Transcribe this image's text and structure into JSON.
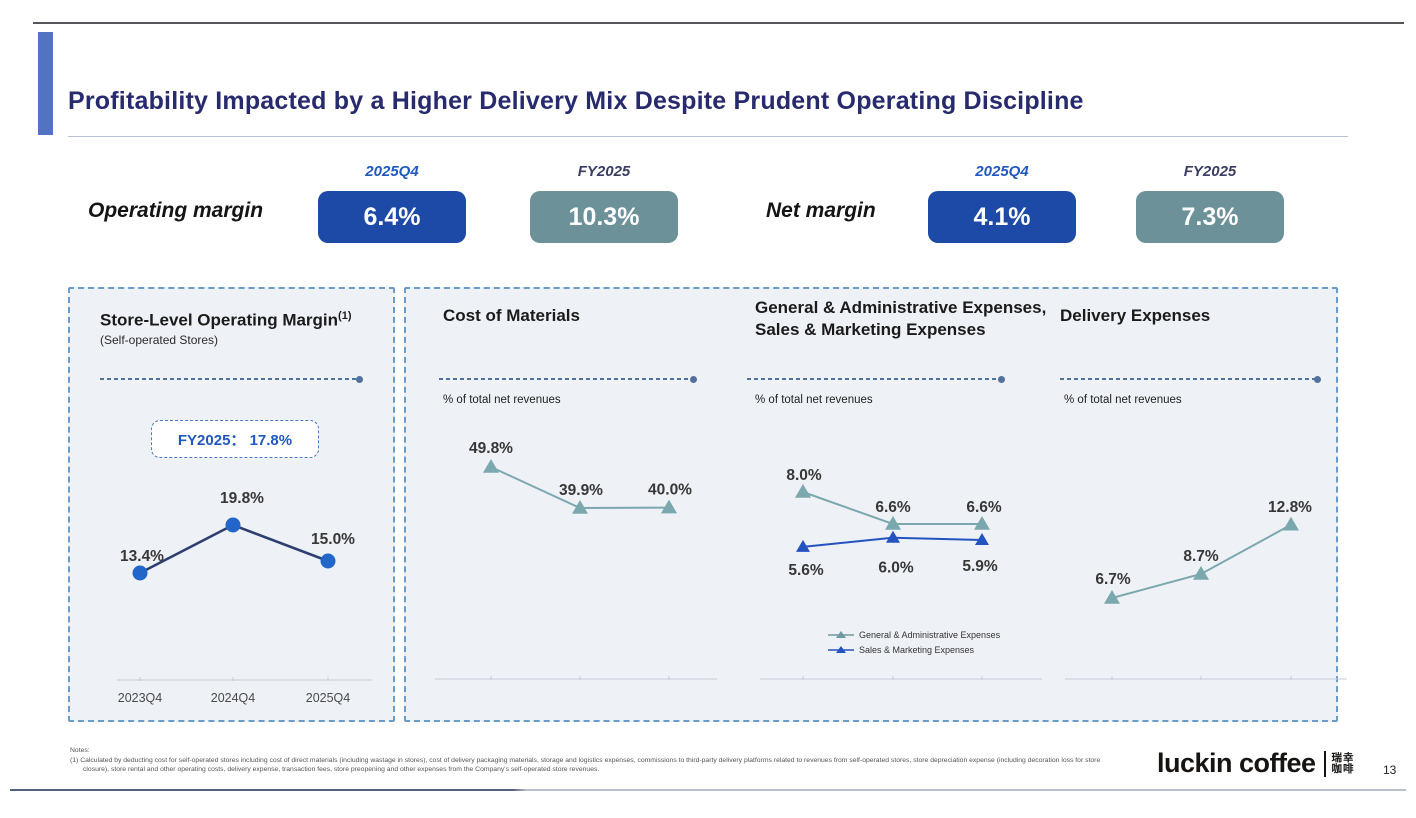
{
  "slide": {
    "title": "Profitability Impacted by a Higher Delivery Mix Despite Prudent Operating Discipline"
  },
  "summary": {
    "metrics": [
      {
        "label": "Operating margin",
        "period_q": "2025Q4",
        "value_q": "6.4%",
        "period_fy": "FY2025",
        "value_fy": "10.3%"
      },
      {
        "label": "Net margin",
        "period_q": "2025Q4",
        "value_q": "4.1%",
        "period_fy": "FY2025",
        "value_fy": "7.3%"
      }
    ]
  },
  "panels": [
    {
      "title": "Store-Level Operating Margin",
      "title_sup": "(1)",
      "subtitle": "(Self-operated Stores)",
      "badge": "FY2025： 17.8%"
    },
    {
      "title": "Cost of Materials",
      "unit_label": "% of total net revenues"
    },
    {
      "title": "General & Administrative Expenses,",
      "title2": "Sales & Marketing Expenses",
      "unit_label": "% of total net revenues",
      "legend": [
        "General & Administrative Expenses",
        "Sales & Marketing Expenses"
      ]
    },
    {
      "title": "Delivery Expenses",
      "unit_label": "% of total net revenues"
    }
  ],
  "chart_data": [
    {
      "type": "line",
      "title": "Store-Level Operating Margin (Self-operated Stores)",
      "categories": [
        "2023Q4",
        "2024Q4",
        "2025Q4"
      ],
      "series": [
        {
          "name": "Store-Level Operating Margin",
          "values": [
            13.4,
            19.8,
            15.0
          ]
        }
      ],
      "annotation": "FY2025： 17.8%",
      "unit": "%",
      "ylim": [
        0,
        25
      ],
      "grid": false,
      "legend_position": "none"
    },
    {
      "type": "line",
      "title": "Cost of Materials",
      "ylabel": "% of total net revenues",
      "categories": [
        "2023Q4",
        "2024Q4",
        "2025Q4"
      ],
      "series": [
        {
          "name": "Cost of Materials",
          "values": [
            49.8,
            39.9,
            40.0
          ]
        }
      ],
      "unit": "%",
      "ylim": [
        0,
        60
      ],
      "grid": false,
      "legend_position": "none"
    },
    {
      "type": "line",
      "title": "General & Administrative Expenses, Sales & Marketing Expenses",
      "ylabel": "% of total net revenues",
      "categories": [
        "2023Q4",
        "2024Q4",
        "2025Q4"
      ],
      "series": [
        {
          "name": "General & Administrative Expenses",
          "values": [
            8.0,
            6.6,
            6.6
          ]
        },
        {
          "name": "Sales & Marketing Expenses",
          "values": [
            5.6,
            6.0,
            5.9
          ]
        }
      ],
      "unit": "%",
      "ylim": [
        0,
        10
      ],
      "grid": false,
      "legend_position": "bottom"
    },
    {
      "type": "line",
      "title": "Delivery Expenses",
      "ylabel": "% of total net revenues",
      "categories": [
        "2023Q4",
        "2024Q4",
        "2025Q4"
      ],
      "series": [
        {
          "name": "Delivery Expenses",
          "values": [
            6.7,
            8.7,
            12.8
          ]
        }
      ],
      "unit": "%",
      "ylim": [
        0,
        15
      ],
      "grid": false,
      "legend_position": "none"
    }
  ],
  "footer": {
    "notes_label": "Notes:",
    "note_1": "(1)  Calculated by deducting cost for self-operated stores including cost of direct materials (including wastage in stores), cost of delivery packaging materials, storage and logistics expenses, commissions to third-party delivery platforms related to revenues from self-operated stores, store depreciation expense (including decoration loss for store closure), store rental and other operating costs, delivery expense, transaction fees, store preopening and other expenses from the Company's self-operated store revenues.",
    "logo_text": "luckin coffee",
    "logo_cn_top": "瑞幸",
    "logo_cn_bottom": "咖啡",
    "page_number": "13"
  },
  "colors": {
    "title_navy": "#282a6e",
    "accent_bar_blue": "#5273c2",
    "pill_blue": "#1d4aa6",
    "pill_teal": "#6c9198",
    "line_navy": "#2d3f70",
    "marker_blue": "#2366c9",
    "line_teal": "#7ba7ae",
    "line_sm_blue": "#2453c0",
    "panel_bg": "#eef1f6",
    "panel_border": "#6b9cc9"
  }
}
